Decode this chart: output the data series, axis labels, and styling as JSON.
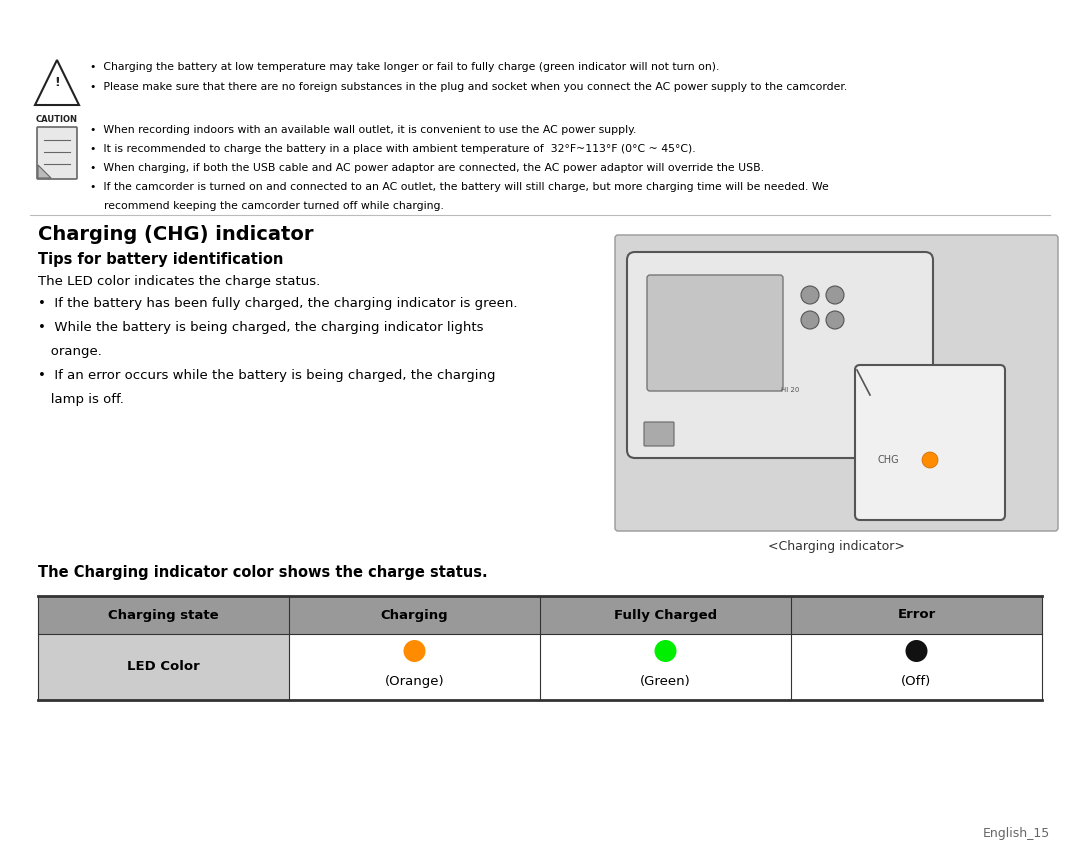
{
  "bg_color": "#ffffff",
  "page_width": 10.8,
  "page_height": 8.66,
  "caution_line1": "Charging the battery at low temperature may take longer or fail to fully charge (green indicator will not turn on).",
  "caution_line2": "Please make sure that there are no foreign substances in the plug and socket when you connect the AC power supply to the camcorder.",
  "note_line1": "When recording indoors with an available wall outlet, it is convenient to use the AC power supply.",
  "note_line2": "It is recommended to charge the battery in a place with ambient temperature of  32°F~113°F (0°C ~ 45°C).",
  "note_line3": "When charging, if both the USB cable and AC power adaptor are connected, the AC power adaptor will override the USB.",
  "note_line4a": "If the camcorder is turned on and connected to an AC outlet, the battery will still charge, but more charging time will be needed. We",
  "note_line4b": "recommend keeping the camcorder turned off while charging.",
  "section_title": "Charging (CHG) indicator",
  "sub_title": "Tips for battery identification",
  "body_intro": "The LED color indicates the charge status.",
  "bullet1": "If the battery has been fully charged, the charging indicator is green.",
  "bullet2a": "While the battery is being charged, the charging indicator lights",
  "bullet2b": "orange.",
  "bullet3a": "If an error occurs while the battery is being charged, the charging",
  "bullet3b": "lamp is off.",
  "image_caption": "<Charging indicator>",
  "table_heading": "The Charging indicator color shows the charge status.",
  "table_headers": [
    "Charging state",
    "Charging",
    "Fully Charged",
    "Error"
  ],
  "table_row_label": "LED Color",
  "table_led_colors": [
    "#FF8C00",
    "#00EE00",
    "#111111"
  ],
  "table_led_labels": [
    "(Orange)",
    "(Green)",
    "(Off)"
  ],
  "footer_text": "English_15",
  "table_header_bg": "#999999",
  "table_cell_bg": "#cccccc",
  "table_border_color": "#333333",
  "table_white_bg": "#ffffff",
  "divider_color": "#bbbbbb"
}
